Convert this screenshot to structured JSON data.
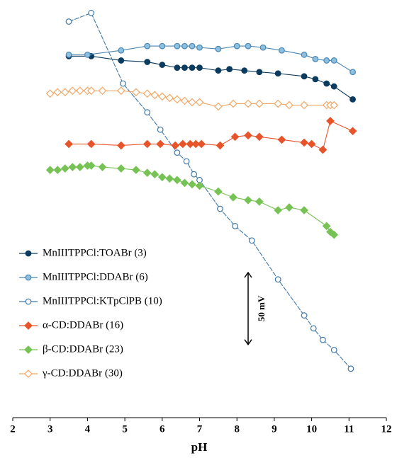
{
  "chart_data": {
    "type": "line",
    "xlabel": "pH",
    "xlim": [
      2,
      12
    ],
    "xticks": [
      2,
      3,
      4,
      5,
      6,
      7,
      8,
      9,
      10,
      11,
      12
    ],
    "ylim": [
      -15,
      275
    ],
    "legend": "left",
    "scale_bar": {
      "value": 50,
      "label": "50 mV"
    },
    "series": [
      {
        "name": "MnIIITPPCl:TOABr (3)",
        "color": "#0b3b5e",
        "marker": "circle",
        "fill": "#0b3b5e",
        "x": [
          3.5,
          4.1,
          4.9,
          5.6,
          6.0,
          6.4,
          6.6,
          6.8,
          7.0,
          7.5,
          7.8,
          8.2,
          8.6,
          9.1,
          9.8,
          10.1,
          10.4,
          10.6,
          11.1
        ],
        "values": [
          236,
          236,
          233,
          232,
          230,
          228,
          228,
          228,
          228,
          226,
          227,
          226,
          225,
          224,
          222,
          220,
          217,
          215,
          206
        ]
      },
      {
        "name": "MnIIITPPCl:DDABr (6)",
        "color": "#4a86b4",
        "marker": "circle",
        "fill": "#8cc0e0",
        "x": [
          3.5,
          4.0,
          4.9,
          5.6,
          6.0,
          6.4,
          6.6,
          6.8,
          7.0,
          7.5,
          8.0,
          8.3,
          8.7,
          9.2,
          9.8,
          10.1,
          10.4,
          10.6,
          11.1
        ],
        "values": [
          237,
          237,
          240,
          243,
          243,
          243,
          243,
          243,
          242,
          241,
          243,
          243,
          242,
          240,
          237,
          234,
          233,
          233,
          225
        ]
      },
      {
        "name": "MnIIITPPCl:KTpClPB (10)",
        "color": "#3f78a8",
        "marker": "circle",
        "fill": "#ffffff",
        "x": [
          3.5,
          4.1,
          4.95,
          5.6,
          5.95,
          6.4,
          6.65,
          6.85,
          7.0,
          7.55,
          7.95,
          8.4,
          9.1,
          9.8,
          10.05,
          10.3,
          10.6,
          11.05
        ],
        "values": [
          260,
          266,
          217,
          197,
          185,
          169,
          163,
          154,
          150,
          130,
          118,
          108,
          81,
          56,
          47,
          39,
          32,
          19
        ]
      },
      {
        "name": "α-CD:DDABr (16)",
        "color": "#e8542a",
        "marker": "diamond",
        "fill": "#e8542a",
        "x": [
          3.5,
          4.1,
          4.9,
          5.6,
          5.95,
          6.35,
          6.55,
          6.75,
          6.9,
          7.05,
          7.55,
          7.95,
          8.3,
          8.6,
          9.2,
          9.8,
          10.0,
          10.3,
          10.5,
          11.1
        ],
        "values": [
          175,
          175,
          174,
          175,
          175,
          174,
          175,
          175,
          175,
          175,
          174,
          180,
          181,
          180,
          178,
          176,
          175,
          171,
          191,
          184
        ]
      },
      {
        "name": "β-CD:DDABr (23)",
        "color": "#76c254",
        "marker": "diamond",
        "fill": "#76c254",
        "x": [
          3.0,
          3.2,
          3.4,
          3.6,
          3.8,
          4.0,
          4.1,
          4.4,
          4.9,
          5.3,
          5.6,
          5.8,
          6.0,
          6.2,
          6.4,
          6.6,
          6.8,
          7.0,
          7.5,
          7.9,
          8.3,
          8.6,
          9.1,
          9.4,
          9.8,
          10.4,
          10.5,
          10.6
        ],
        "values": [
          157,
          157,
          158,
          159,
          159,
          160,
          160,
          159,
          158,
          157,
          155,
          154,
          152,
          151,
          150,
          148,
          147,
          146,
          142,
          138,
          136,
          135,
          129,
          131,
          129,
          118,
          114,
          112
        ]
      },
      {
        "name": "γ-CD:DDABr (30)",
        "color": "#f2a765",
        "marker": "diamond",
        "fill": "#ffffff",
        "x": [
          3.0,
          3.2,
          3.4,
          3.6,
          3.8,
          4.0,
          4.1,
          4.4,
          4.9,
          5.3,
          5.6,
          5.8,
          6.0,
          6.2,
          6.4,
          6.6,
          6.8,
          7.0,
          7.5,
          7.9,
          8.3,
          8.6,
          9.1,
          9.4,
          9.8,
          10.4,
          10.5,
          10.6
        ],
        "values": [
          210,
          211,
          211,
          212,
          212,
          212,
          212,
          212,
          212,
          211,
          210,
          209,
          208,
          207,
          206,
          205,
          204,
          204,
          201,
          203,
          203,
          203,
          203,
          202,
          202,
          202,
          202,
          202
        ]
      }
    ]
  }
}
